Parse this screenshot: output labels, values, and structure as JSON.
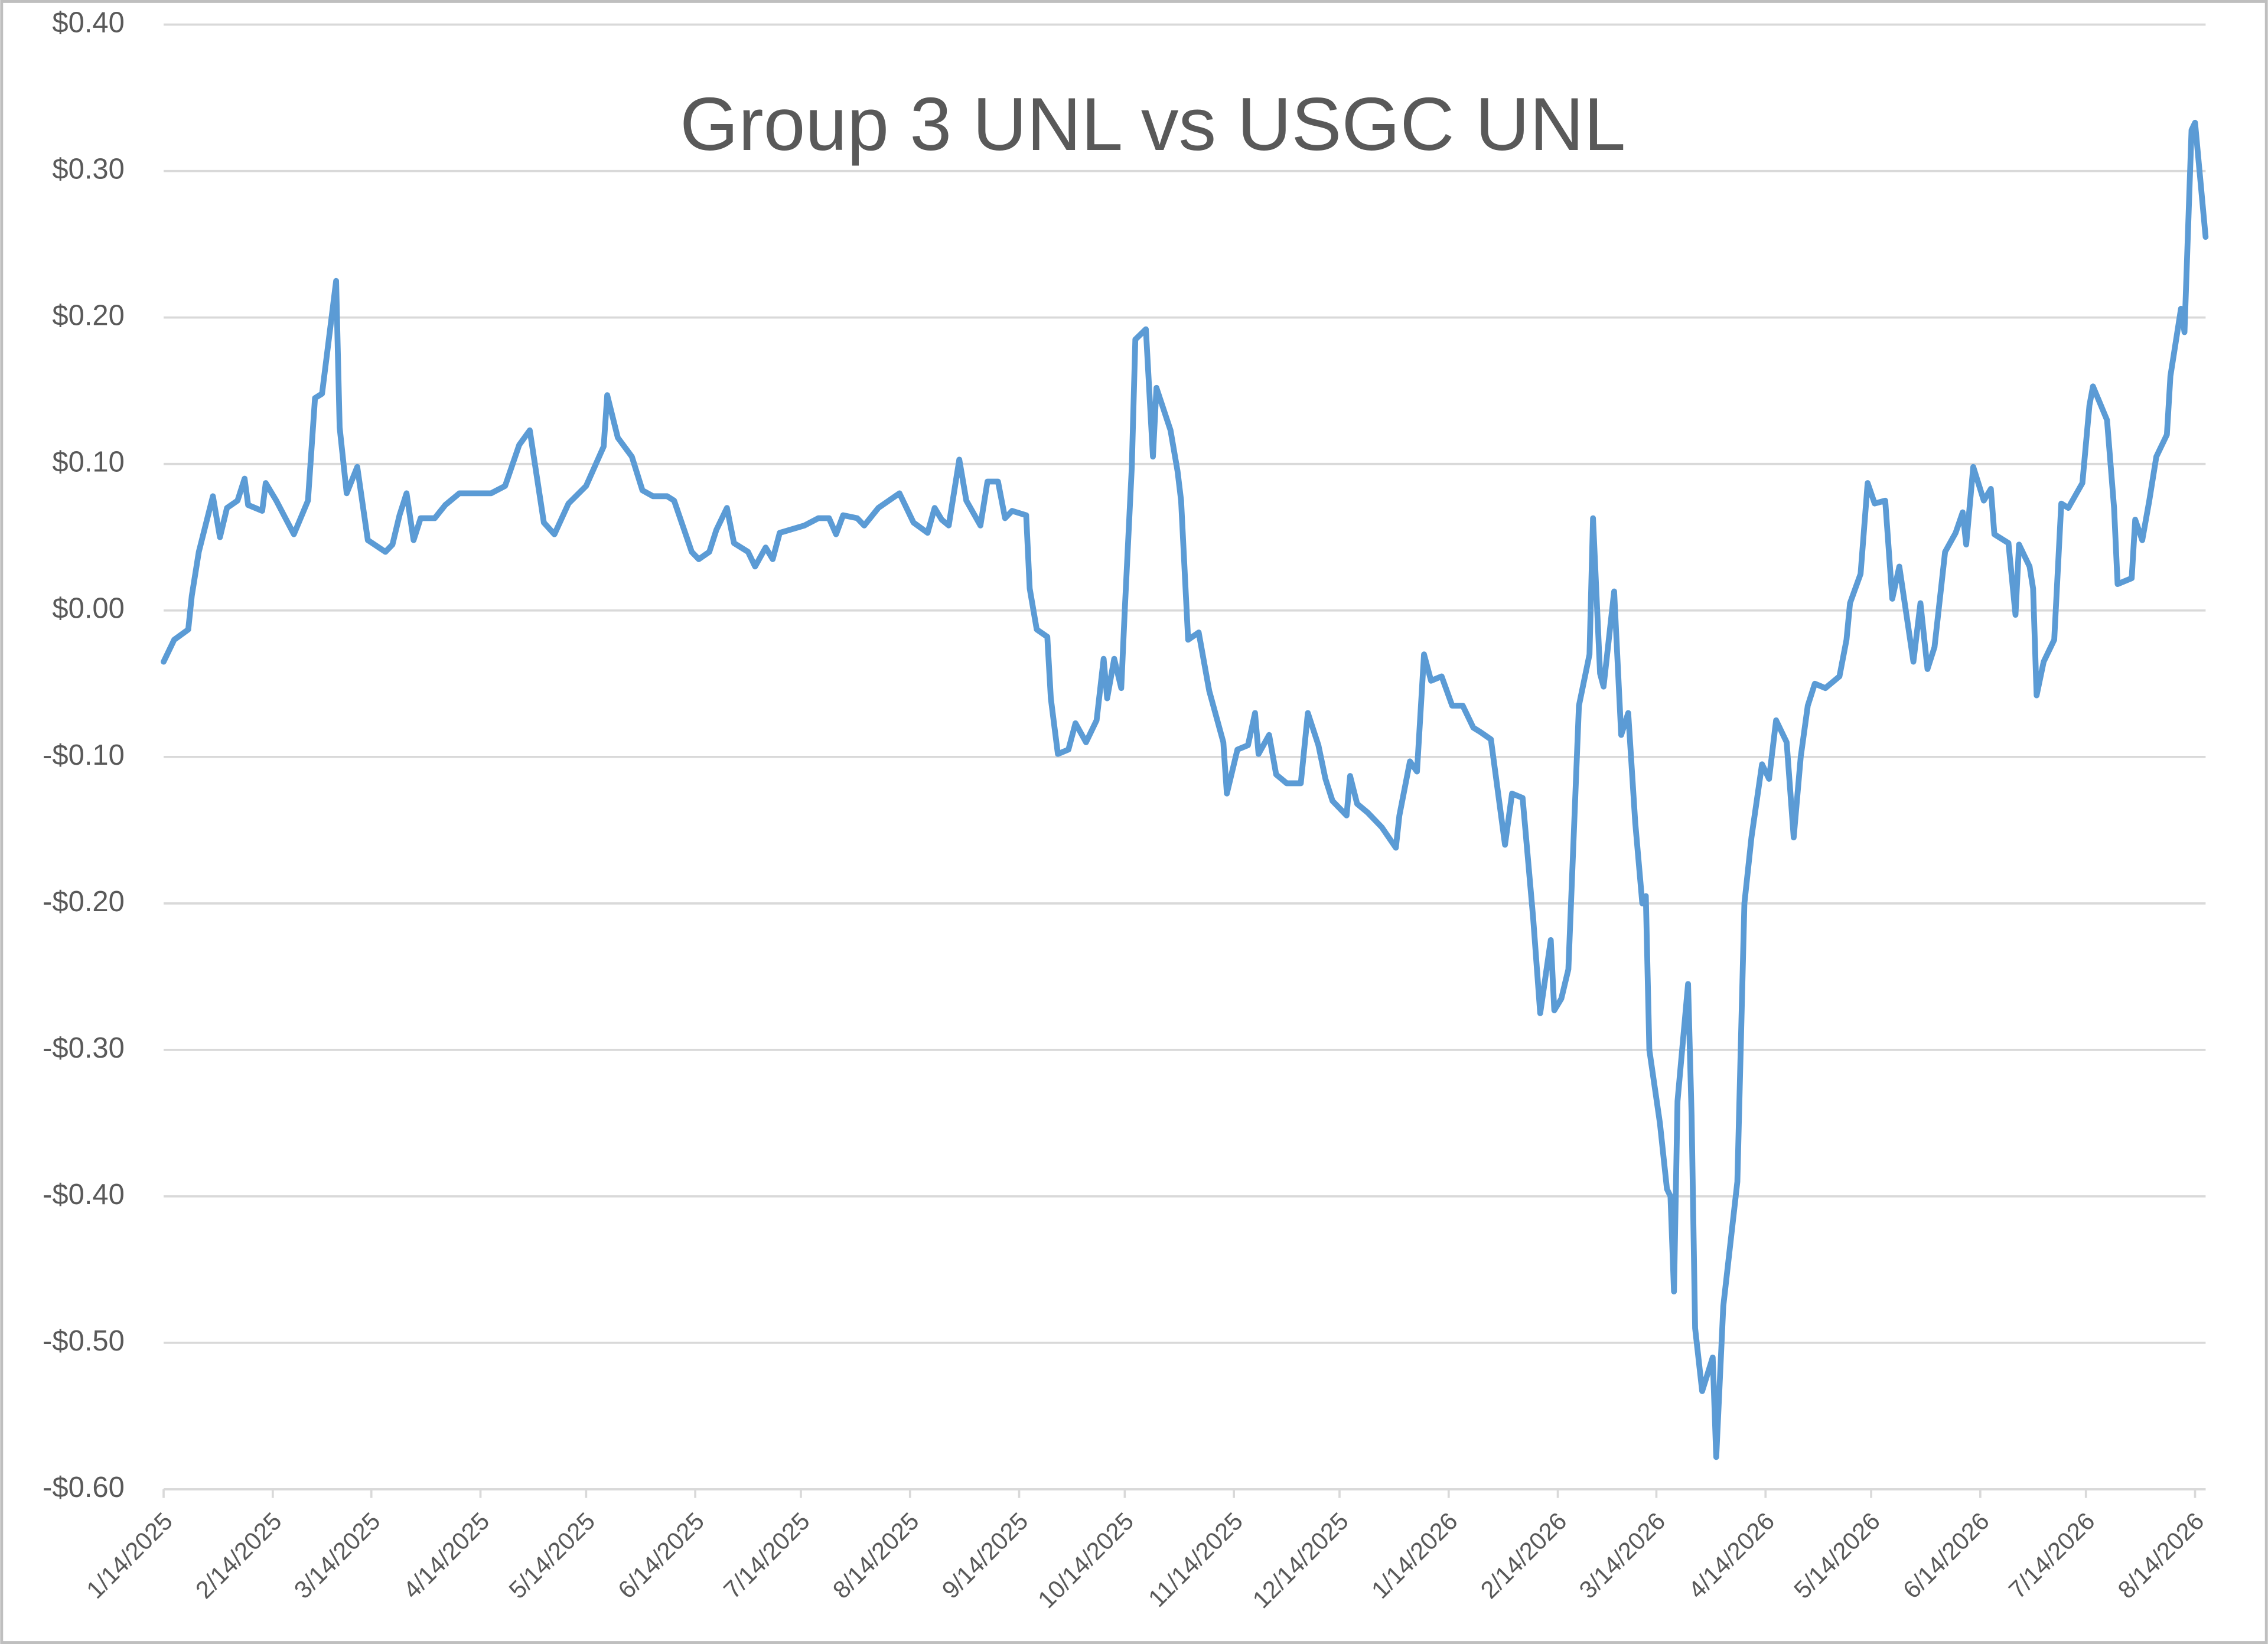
{
  "chart_data": {
    "type": "line",
    "title": "Group 3 UNL vs USGC UNL",
    "color": "#5b9bd5",
    "grid": true,
    "x": [
      "1/14/2025",
      "1/17/2025",
      "1/21/2025",
      "1/22/2025",
      "1/24/2025",
      "1/28/2025",
      "1/30/2025",
      "2/1/2025",
      "2/4/2025",
      "2/6/2025",
      "2/7/2025",
      "2/11/2025",
      "2/12/2025",
      "2/15/2025",
      "2/20/2025",
      "2/24/2025",
      "2/26/2025",
      "2/28/2025",
      "3/4/2025",
      "3/5/2025",
      "3/7/2025",
      "3/10/2025",
      "3/13/2025",
      "3/18/2025",
      "3/20/2025",
      "3/22/2025",
      "3/24/2025",
      "3/26/2025",
      "3/28/2025",
      "4/1/2025",
      "4/4/2025",
      "4/8/2025",
      "4/11/2025",
      "4/17/2025",
      "4/21/2025",
      "4/25/2025",
      "4/28/2025",
      "5/2/2025",
      "5/5/2025",
      "5/9/2025",
      "5/14/2025",
      "5/19/2025",
      "5/20/2025",
      "5/23/2025",
      "5/27/2025",
      "5/30/2025",
      "6/2/2025",
      "6/6/2025",
      "6/8/2025",
      "6/13/2025",
      "6/15/2025",
      "6/18/2025",
      "6/20/2025",
      "6/23/2025",
      "6/25/2025",
      "6/29/2025",
      "7/1/2025",
      "7/4/2025",
      "7/6/2025",
      "7/8/2025",
      "7/15/2025",
      "7/19/2025",
      "7/22/2025",
      "7/24/2025",
      "7/26/2025",
      "7/30/2025",
      "8/1/2025",
      "8/5/2025",
      "8/8/2025",
      "8/11/2025",
      "8/15/2025",
      "8/19/2025",
      "8/21/2025",
      "8/23/2025",
      "8/25/2025",
      "8/28/2025",
      "8/30/2025",
      "9/3/2025",
      "9/5/2025",
      "9/8/2025",
      "9/10/2025",
      "9/12/2025",
      "9/16/2025",
      "9/17/2025",
      "9/19/2025",
      "9/22/2025",
      "9/23/2025",
      "9/25/2025",
      "9/28/2025",
      "9/30/2025",
      "10/3/2025",
      "10/6/2025",
      "10/8/2025",
      "10/9/2025",
      "10/11/2025",
      "10/13/2025",
      "10/14/2025",
      "10/16/2025",
      "10/17/2025",
      "10/20/2025",
      "10/22/2025",
      "10/23/2025",
      "10/27/2025",
      "10/29/2025",
      "10/30/2025",
      "11/1/2025",
      "11/4/2025",
      "11/7/2025",
      "11/11/2025",
      "11/12/2025",
      "11/15/2025",
      "11/18/2025",
      "11/20/2025",
      "11/21/2025",
      "11/24/2025",
      "11/26/2025",
      "11/29/2025",
      "12/3/2025",
      "12/5/2025",
      "12/8/2025",
      "12/10/2025",
      "12/12/2025",
      "12/16/2025",
      "12/17/2025",
      "12/19/2025",
      "12/22/2025",
      "12/26/2025",
      "12/30/2025",
      "12/31/2025",
      "1/3/2026",
      "1/5/2026",
      "1/7/2026",
      "1/9/2026",
      "1/12/2026",
      "1/15/2026",
      "1/18/2026",
      "1/21/2026",
      "1/23/2026",
      "1/26/2026",
      "1/30/2026",
      "2/1/2026",
      "2/4/2026",
      "2/7/2026",
      "2/9/2026",
      "2/12/2026",
      "2/13/2026",
      "2/15/2026",
      "2/17/2026",
      "2/20/2026",
      "2/23/2026",
      "2/24/2026",
      "2/26/2026",
      "2/27/2026",
      "3/2/2026",
      "3/4/2026",
      "3/6/2026",
      "3/8/2026",
      "3/10/2026",
      "3/11/2026",
      "3/12/2026",
      "3/15/2026",
      "3/17/2026",
      "3/18/2026",
      "3/19/2026",
      "3/20/2026",
      "3/23/2026",
      "3/24/2026",
      "3/25/2026",
      "3/27/2026",
      "3/30/2026",
      "3/31/2026",
      "4/2/2026",
      "4/6/2026",
      "4/8/2026",
      "4/10/2026",
      "4/13/2026",
      "4/15/2026",
      "4/17/2026",
      "4/20/2026",
      "4/22/2026",
      "4/24/2026",
      "4/26/2026",
      "4/28/2026",
      "5/1/2026",
      "5/5/2026",
      "5/7/2026",
      "5/8/2026",
      "5/11/2026",
      "5/13/2026",
      "5/15/2026",
      "5/18/2026",
      "5/20/2026",
      "5/22/2026",
      "5/26/2026",
      "5/28/2026",
      "5/30/2026",
      "6/1/2026",
      "6/4/2026",
      "6/7/2026",
      "6/9/2026",
      "6/10/2026",
      "6/12/2026",
      "6/15/2026",
      "6/17/2026",
      "6/18/2026",
      "6/22/2026",
      "6/24/2026",
      "6/25/2026",
      "6/28/2026",
      "6/29/2026",
      "6/30/2026",
      "7/2/2026",
      "7/5/2026",
      "7/7/2026",
      "7/9/2026",
      "7/13/2026",
      "7/15/2026",
      "7/16/2026",
      "7/20/2026",
      "7/22/2026",
      "7/23/2026",
      "7/27/2026",
      "7/28/2026",
      "7/30/2026",
      "8/1/2026",
      "8/3/2026",
      "8/6/2026",
      "8/7/2026",
      "8/10/2026",
      "8/11/2026",
      "8/13/2026",
      "8/14/2026",
      "8/17/2026"
    ],
    "values": [
      -0.035,
      -0.02,
      -0.013,
      0.01,
      0.04,
      0.078,
      0.05,
      0.07,
      0.075,
      0.09,
      0.072,
      0.068,
      0.087,
      0.075,
      0.052,
      0.075,
      0.145,
      0.148,
      0.225,
      0.125,
      0.08,
      0.098,
      0.048,
      0.04,
      0.045,
      0.065,
      0.08,
      0.048,
      0.063,
      0.063,
      0.072,
      0.08,
      0.08,
      0.08,
      0.085,
      0.113,
      0.123,
      0.06,
      0.052,
      0.073,
      0.085,
      0.112,
      0.147,
      0.118,
      0.105,
      0.082,
      0.078,
      0.078,
      0.075,
      0.04,
      0.035,
      0.04,
      0.055,
      0.07,
      0.046,
      0.04,
      0.03,
      0.043,
      0.035,
      0.053,
      0.058,
      0.063,
      0.063,
      0.052,
      0.065,
      0.063,
      0.058,
      0.07,
      0.075,
      0.08,
      0.06,
      0.053,
      0.07,
      0.062,
      0.058,
      0.103,
      0.075,
      0.058,
      0.088,
      0.088,
      0.063,
      0.068,
      0.065,
      0.015,
      -0.013,
      -0.018,
      -0.06,
      -0.098,
      -0.095,
      -0.077,
      -0.09,
      -0.075,
      -0.033,
      -0.06,
      -0.033,
      -0.053,
      0.0,
      0.098,
      0.185,
      0.192,
      0.105,
      0.152,
      0.123,
      0.095,
      0.075,
      -0.02,
      -0.015,
      -0.055,
      -0.09,
      -0.125,
      -0.095,
      -0.092,
      -0.07,
      -0.098,
      -0.085,
      -0.112,
      -0.118,
      -0.118,
      -0.07,
      -0.092,
      -0.115,
      -0.13,
      -0.14,
      -0.113,
      -0.132,
      -0.138,
      -0.148,
      -0.162,
      -0.14,
      -0.103,
      -0.11,
      -0.03,
      -0.048,
      -0.045,
      -0.065,
      -0.065,
      -0.08,
      -0.083,
      -0.088,
      -0.16,
      -0.125,
      -0.128,
      -0.21,
      -0.275,
      -0.225,
      -0.273,
      -0.265,
      -0.245,
      -0.065,
      -0.03,
      0.063,
      -0.043,
      -0.052,
      0.013,
      -0.085,
      -0.07,
      -0.145,
      -0.2,
      -0.195,
      -0.3,
      -0.35,
      -0.395,
      -0.4,
      -0.465,
      -0.335,
      -0.255,
      -0.345,
      -0.49,
      -0.533,
      -0.51,
      -0.578,
      -0.475,
      -0.39,
      -0.2,
      -0.155,
      -0.105,
      -0.115,
      -0.075,
      -0.09,
      -0.155,
      -0.1,
      -0.065,
      -0.05,
      -0.053,
      -0.045,
      -0.02,
      0.005,
      0.025,
      0.087,
      0.073,
      0.075,
      0.008,
      0.03,
      -0.035,
      0.005,
      -0.04,
      -0.025,
      0.04,
      0.053,
      0.067,
      0.045,
      0.098,
      0.075,
      0.083,
      0.052,
      0.046,
      -0.003,
      0.045,
      0.03,
      0.015,
      -0.058,
      -0.035,
      -0.02,
      0.073,
      0.07,
      0.087,
      0.14,
      0.153,
      0.13,
      0.07,
      0.018,
      0.022,
      0.062,
      0.048,
      0.075,
      0.105,
      0.12,
      0.16,
      0.206,
      0.19,
      0.328,
      0.333,
      0.255
    ],
    "xlim": [
      "1/14/2025",
      "8/17/2026"
    ],
    "xticks": [
      "1/14/2025",
      "2/14/2025",
      "3/14/2025",
      "4/14/2025",
      "5/14/2025",
      "6/14/2025",
      "7/14/2025",
      "8/14/2025",
      "9/14/2025",
      "10/14/2025",
      "11/14/2025",
      "12/14/2025",
      "1/14/2026",
      "2/14/2026",
      "3/14/2026",
      "4/14/2026",
      "5/14/2026",
      "6/14/2026",
      "7/14/2026",
      "8/14/2026"
    ],
    "ylim": [
      -0.6,
      0.4
    ],
    "yticks": [
      {
        "value": -0.6,
        "label": "-$0.60"
      },
      {
        "value": -0.5,
        "label": "-$0.50"
      },
      {
        "value": -0.4,
        "label": "-$0.40"
      },
      {
        "value": -0.3,
        "label": "-$0.30"
      },
      {
        "value": -0.2,
        "label": "-$0.20"
      },
      {
        "value": -0.1,
        "label": "-$0.10"
      },
      {
        "value": 0,
        "label": "$0.00"
      },
      {
        "value": 0.1,
        "label": "$0.10"
      },
      {
        "value": 0.2,
        "label": "$0.20"
      },
      {
        "value": 0.3,
        "label": "$0.30"
      },
      {
        "value": 0.4,
        "label": "$0.40"
      }
    ]
  }
}
